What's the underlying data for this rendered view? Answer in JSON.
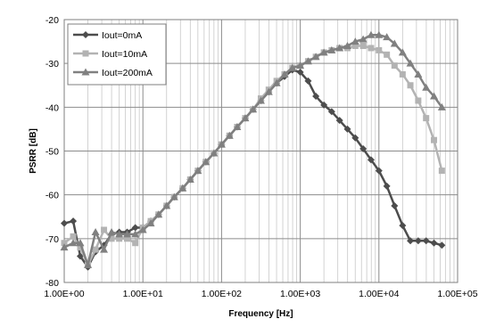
{
  "chart_data": {
    "type": "line",
    "xlabel": "Frequency [Hz]",
    "ylabel": "PSRR [dB]",
    "xscale": "log",
    "xlim": [
      1,
      100000
    ],
    "ylim": [
      -80,
      -20
    ],
    "x_ticks": [
      1,
      10,
      100,
      1000,
      10000,
      100000
    ],
    "x_tick_labels": [
      "1.00E+00",
      "1.00E+01",
      "1.00E+02",
      "1.00E+03",
      "1.00E+04",
      "1.00E+05"
    ],
    "y_ticks": [
      -80,
      -70,
      -60,
      -50,
      -40,
      -30,
      -20
    ],
    "y_tick_labels": [
      "-80",
      "-70",
      "-60",
      "-50",
      "-40",
      "-30",
      "-20"
    ],
    "grid": "major and minor (log) gridlines",
    "legend_position": "top-left",
    "series": [
      {
        "name": "Iout=0mA",
        "color": "#4d4d4d",
        "marker": "diamond",
        "points": [
          [
            1,
            -66.5
          ],
          [
            1.3,
            -66
          ],
          [
            1.6,
            -74
          ],
          [
            2,
            -76.5
          ],
          [
            2.5,
            -73
          ],
          [
            3.2,
            -71.5
          ],
          [
            4,
            -69
          ],
          [
            5,
            -68.5
          ],
          [
            6.3,
            -68.5
          ],
          [
            8,
            -67.5
          ],
          [
            10,
            -67.5
          ],
          [
            12.6,
            -66
          ],
          [
            15.8,
            -64.5
          ],
          [
            20,
            -62.5
          ],
          [
            25,
            -60.5
          ],
          [
            32,
            -58.5
          ],
          [
            40,
            -56.5
          ],
          [
            50,
            -54.5
          ],
          [
            63,
            -52.5
          ],
          [
            80,
            -50.5
          ],
          [
            100,
            -48.5
          ],
          [
            126,
            -46.5
          ],
          [
            158,
            -44.5
          ],
          [
            200,
            -42.5
          ],
          [
            251,
            -40.5
          ],
          [
            316,
            -38.5
          ],
          [
            398,
            -36.5
          ],
          [
            501,
            -34.5
          ],
          [
            631,
            -33
          ],
          [
            794,
            -31.5
          ],
          [
            1000,
            -32
          ],
          [
            1260,
            -34
          ],
          [
            1580,
            -37.5
          ],
          [
            2000,
            -39.5
          ],
          [
            2510,
            -41
          ],
          [
            3160,
            -43
          ],
          [
            3980,
            -45
          ],
          [
            5010,
            -47
          ],
          [
            6310,
            -49.5
          ],
          [
            7940,
            -52
          ],
          [
            10000,
            -54.5
          ],
          [
            12600,
            -58
          ],
          [
            15800,
            -62.5
          ],
          [
            20000,
            -67
          ],
          [
            25100,
            -70.5
          ],
          [
            31600,
            -70.5
          ],
          [
            39800,
            -70.5
          ],
          [
            50100,
            -71
          ],
          [
            63100,
            -71.5
          ]
        ]
      },
      {
        "name": "Iout=10mA",
        "color": "#b3b3b3",
        "marker": "square",
        "points": [
          [
            1,
            -71
          ],
          [
            1.3,
            -69.5
          ],
          [
            1.6,
            -72
          ],
          [
            2,
            -76
          ],
          [
            2.5,
            -72.5
          ],
          [
            3.2,
            -68
          ],
          [
            4,
            -70
          ],
          [
            5,
            -70
          ],
          [
            6.3,
            -70
          ],
          [
            8,
            -71
          ],
          [
            10,
            -67.5
          ],
          [
            12.6,
            -66
          ],
          [
            15.8,
            -64.5
          ],
          [
            20,
            -62.5
          ],
          [
            25,
            -60.5
          ],
          [
            32,
            -58.5
          ],
          [
            40,
            -56.5
          ],
          [
            50,
            -54.5
          ],
          [
            63,
            -52.5
          ],
          [
            80,
            -50.5
          ],
          [
            100,
            -48.5
          ],
          [
            126,
            -46.5
          ],
          [
            158,
            -44.5
          ],
          [
            200,
            -42.5
          ],
          [
            251,
            -40.5
          ],
          [
            316,
            -38
          ],
          [
            398,
            -36
          ],
          [
            501,
            -34
          ],
          [
            631,
            -32.5
          ],
          [
            794,
            -31
          ],
          [
            1000,
            -30.5
          ],
          [
            1260,
            -29.5
          ],
          [
            1580,
            -28.5
          ],
          [
            2000,
            -27.5
          ],
          [
            2510,
            -27
          ],
          [
            3160,
            -26.5
          ],
          [
            3980,
            -26.5
          ],
          [
            5010,
            -26
          ],
          [
            6310,
            -26
          ],
          [
            7940,
            -26.5
          ],
          [
            10000,
            -27
          ],
          [
            12600,
            -28
          ],
          [
            15800,
            -30.5
          ],
          [
            20000,
            -32.5
          ],
          [
            25100,
            -35
          ],
          [
            31600,
            -38.5
          ],
          [
            39800,
            -42.5
          ],
          [
            50100,
            -47.5
          ],
          [
            63100,
            -54.5
          ]
        ]
      },
      {
        "name": "Iout=200mA",
        "color": "#808080",
        "marker": "triangle",
        "points": [
          [
            1,
            -72
          ],
          [
            1.3,
            -71
          ],
          [
            1.6,
            -71
          ],
          [
            2,
            -76
          ],
          [
            2.5,
            -68.5
          ],
          [
            3.2,
            -72.5
          ],
          [
            4,
            -68.5
          ],
          [
            5,
            -69
          ],
          [
            6.3,
            -69
          ],
          [
            8,
            -69
          ],
          [
            10,
            -68
          ],
          [
            12.6,
            -66.5
          ],
          [
            15.8,
            -64.5
          ],
          [
            20,
            -62.5
          ],
          [
            25,
            -60.5
          ],
          [
            32,
            -58.5
          ],
          [
            40,
            -56.5
          ],
          [
            50,
            -54.5
          ],
          [
            63,
            -52.5
          ],
          [
            80,
            -50.5
          ],
          [
            100,
            -48.5
          ],
          [
            126,
            -46.5
          ],
          [
            158,
            -44.5
          ],
          [
            200,
            -42.5
          ],
          [
            251,
            -40.5
          ],
          [
            316,
            -38.5
          ],
          [
            398,
            -36.5
          ],
          [
            501,
            -34.5
          ],
          [
            631,
            -32.5
          ],
          [
            794,
            -31
          ],
          [
            1000,
            -30.5
          ],
          [
            1260,
            -29.5
          ],
          [
            1580,
            -28.5
          ],
          [
            2000,
            -27.5
          ],
          [
            2510,
            -27
          ],
          [
            3160,
            -26.5
          ],
          [
            3980,
            -26
          ],
          [
            5010,
            -25
          ],
          [
            6310,
            -24.5
          ],
          [
            7940,
            -23.5
          ],
          [
            10000,
            -23.5
          ],
          [
            12600,
            -24
          ],
          [
            15800,
            -25.5
          ],
          [
            20000,
            -27.5
          ],
          [
            25100,
            -30
          ],
          [
            31600,
            -32.5
          ],
          [
            39800,
            -35.5
          ],
          [
            50100,
            -37.5
          ],
          [
            63100,
            -40
          ]
        ]
      }
    ]
  }
}
